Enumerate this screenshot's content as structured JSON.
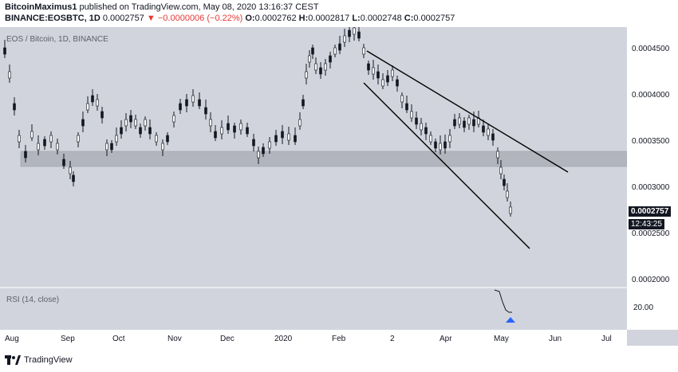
{
  "header": {
    "author": "BitcoinMaximus1",
    "published": "published on TradingView.com, May 08, 2020 13:16:37 CEST",
    "symbol": "BINANCE:EOSBTC, 1D",
    "last": "0.0002757",
    "arrow": "▼",
    "change": "−0.0000006 (−0.22%)",
    "o_label": "O:",
    "o": "0.0002762",
    "h_label": "H:",
    "h": "0.0002817",
    "l_label": "L:",
    "l": "0.0002748",
    "c_label": "C:",
    "c": "0.0002757"
  },
  "chart": {
    "legend": "EOS / Bitcoin, 1D, BINANCE",
    "y_labels": [
      "0.0004500",
      "0.0004000",
      "0.0003500",
      "0.0003000",
      "0.0002500",
      "0.0002000"
    ],
    "current_price": "0.0002757",
    "countdown": "12:43:25",
    "x_labels": [
      "Aug",
      "Sep",
      "Oct",
      "Nov",
      "Dec",
      "2020",
      "Feb",
      "2",
      "Apr",
      "May",
      "Jun",
      "Jul"
    ]
  },
  "rsi": {
    "label": "RSI (14, close)",
    "value": "20.00"
  },
  "footer": {
    "brand": "TradingView"
  },
  "colors": {
    "chart_bg": "#d1d4dc",
    "support_zone": "#b2b5be",
    "candle": "#131722",
    "marker": "#2962ff"
  }
}
